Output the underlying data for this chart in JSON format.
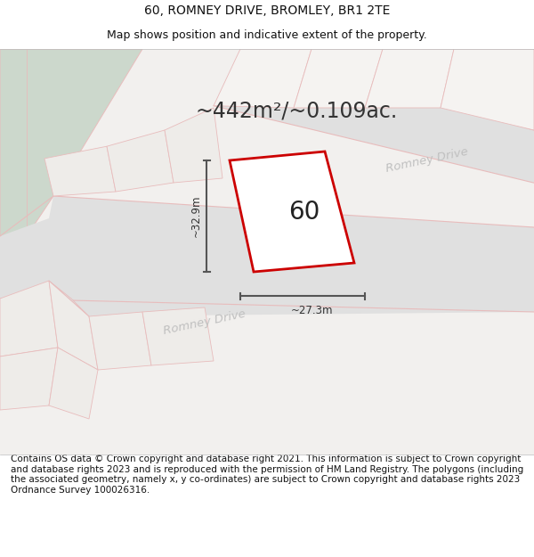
{
  "title": "60, ROMNEY DRIVE, BROMLEY, BR1 2TE",
  "subtitle": "Map shows position and indicative extent of the property.",
  "area_text": "~442m²/~0.109ac.",
  "number_label": "60",
  "dim_width": "~27.3m",
  "dim_height": "~32.9m",
  "road_label_lower": "Romney Drive",
  "road_label_upper": "Romney Drive",
  "footer_text": "Contains OS data © Crown copyright and database right 2021. This information is subject to Crown copyright and database rights 2023 and is reproduced with the permission of HM Land Registry. The polygons (including the associated geometry, namely x, y co-ordinates) are subject to Crown copyright and database rights 2023 Ordnance Survey 100026316.",
  "bg_map_color": "#e8ece8",
  "green_area_color": "#ccd8cc",
  "parcel_bg_color": "#f0f0f0",
  "parcel_bg_color2": "#e8e8e8",
  "road_fill_color": "#e0e0e0",
  "road_stroke_color": "#e8bcbc",
  "parcel_fill": "#ffffff",
  "parcel_stroke": "#cc0000",
  "dim_line_color": "#555555",
  "road_label_color": "#c0c0c0",
  "title_fontsize": 10,
  "subtitle_fontsize": 9,
  "area_fontsize": 17,
  "number_fontsize": 20,
  "road_fontsize": 9.5,
  "footer_fontsize": 7.5
}
